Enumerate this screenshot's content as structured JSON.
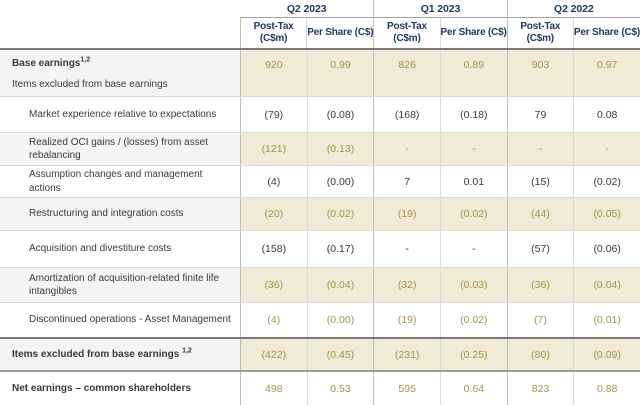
{
  "colors": {
    "header_text_navy": "#1f3864",
    "gold_value_text": "#a6924a",
    "shaded_value_bg": "#f1ead6",
    "shaded_label_bg": "#f4f4f4"
  },
  "table": {
    "quarters": [
      "Q2 2023",
      "Q1 2023",
      "Q2 2022"
    ],
    "subcolumns": [
      {
        "line1": "Post-Tax",
        "line2": "(C$m)"
      },
      {
        "line1": "Per Share (C$)"
      },
      {
        "line1": "Post-Tax",
        "line2": "(C$m)"
      },
      {
        "line1": "Per Share (C$)"
      },
      {
        "line1": "Post-Tax",
        "line2": "(C$m)"
      },
      {
        "line1": "Per Share (C$)"
      }
    ],
    "rows": [
      {
        "label": "Base earnings",
        "sup": "1,2",
        "label2": "Items excluded from base earnings",
        "bold": true,
        "shaded": true,
        "gold": true,
        "values": [
          "920",
          "0.99",
          "826",
          "0.89",
          "903",
          "0.97"
        ]
      },
      {
        "label": "Market experience relative to expectations",
        "indent": true,
        "values": [
          "(79)",
          "(0.08)",
          "(168)",
          "(0.18)",
          "79",
          "0.08"
        ]
      },
      {
        "label": "Realized OCI gains / (losses) from asset rebalancing",
        "indent": true,
        "shaded": true,
        "gold": true,
        "values": [
          "(121)",
          "(0.13)",
          "-",
          "-",
          "-",
          "-"
        ]
      },
      {
        "label": "Assumption changes and management actions",
        "indent": true,
        "values": [
          "(4)",
          "(0.00)",
          "7",
          "0.01",
          "(15)",
          "(0.02)"
        ]
      },
      {
        "label": "Restructuring and integration costs",
        "indent": true,
        "shaded": true,
        "gold": true,
        "values": [
          "(20)",
          "(0.02)",
          "(19)",
          "(0.02)",
          "(44)",
          "(0.05)"
        ]
      },
      {
        "label": "Acquisition and divestiture costs",
        "indent": true,
        "values": [
          "(158)",
          "(0.17)",
          "-",
          "-",
          "(57)",
          "(0.06)"
        ]
      },
      {
        "label": "Amortization of acquisition-related finite life intangibles",
        "indent": true,
        "shaded": true,
        "gold": true,
        "values": [
          "(36)",
          "(0.04)",
          "(32)",
          "(0.03)",
          "(36)",
          "(0.04)"
        ]
      },
      {
        "label": "Discontinued operations - Asset Management",
        "indent": true,
        "gold": true,
        "values": [
          "(4)",
          "(0.00)",
          "(19)",
          "(0.02)",
          "(7)",
          "(0.01)"
        ]
      },
      {
        "label": "Items excluded from base earnings",
        "sup": "1,2",
        "sup_space": true,
        "bold": true,
        "shaded": true,
        "gold": true,
        "border_top": "dark",
        "values": [
          "(422)",
          "(0.45)",
          "(231)",
          "(0.25)",
          "(80)",
          "(0.09)"
        ]
      },
      {
        "label": "Net earnings – common shareholders",
        "bold": true,
        "gold": true,
        "border_top": "medium",
        "values": [
          "498",
          "0.53",
          "595",
          "0.64",
          "823",
          "0.88"
        ]
      }
    ]
  }
}
